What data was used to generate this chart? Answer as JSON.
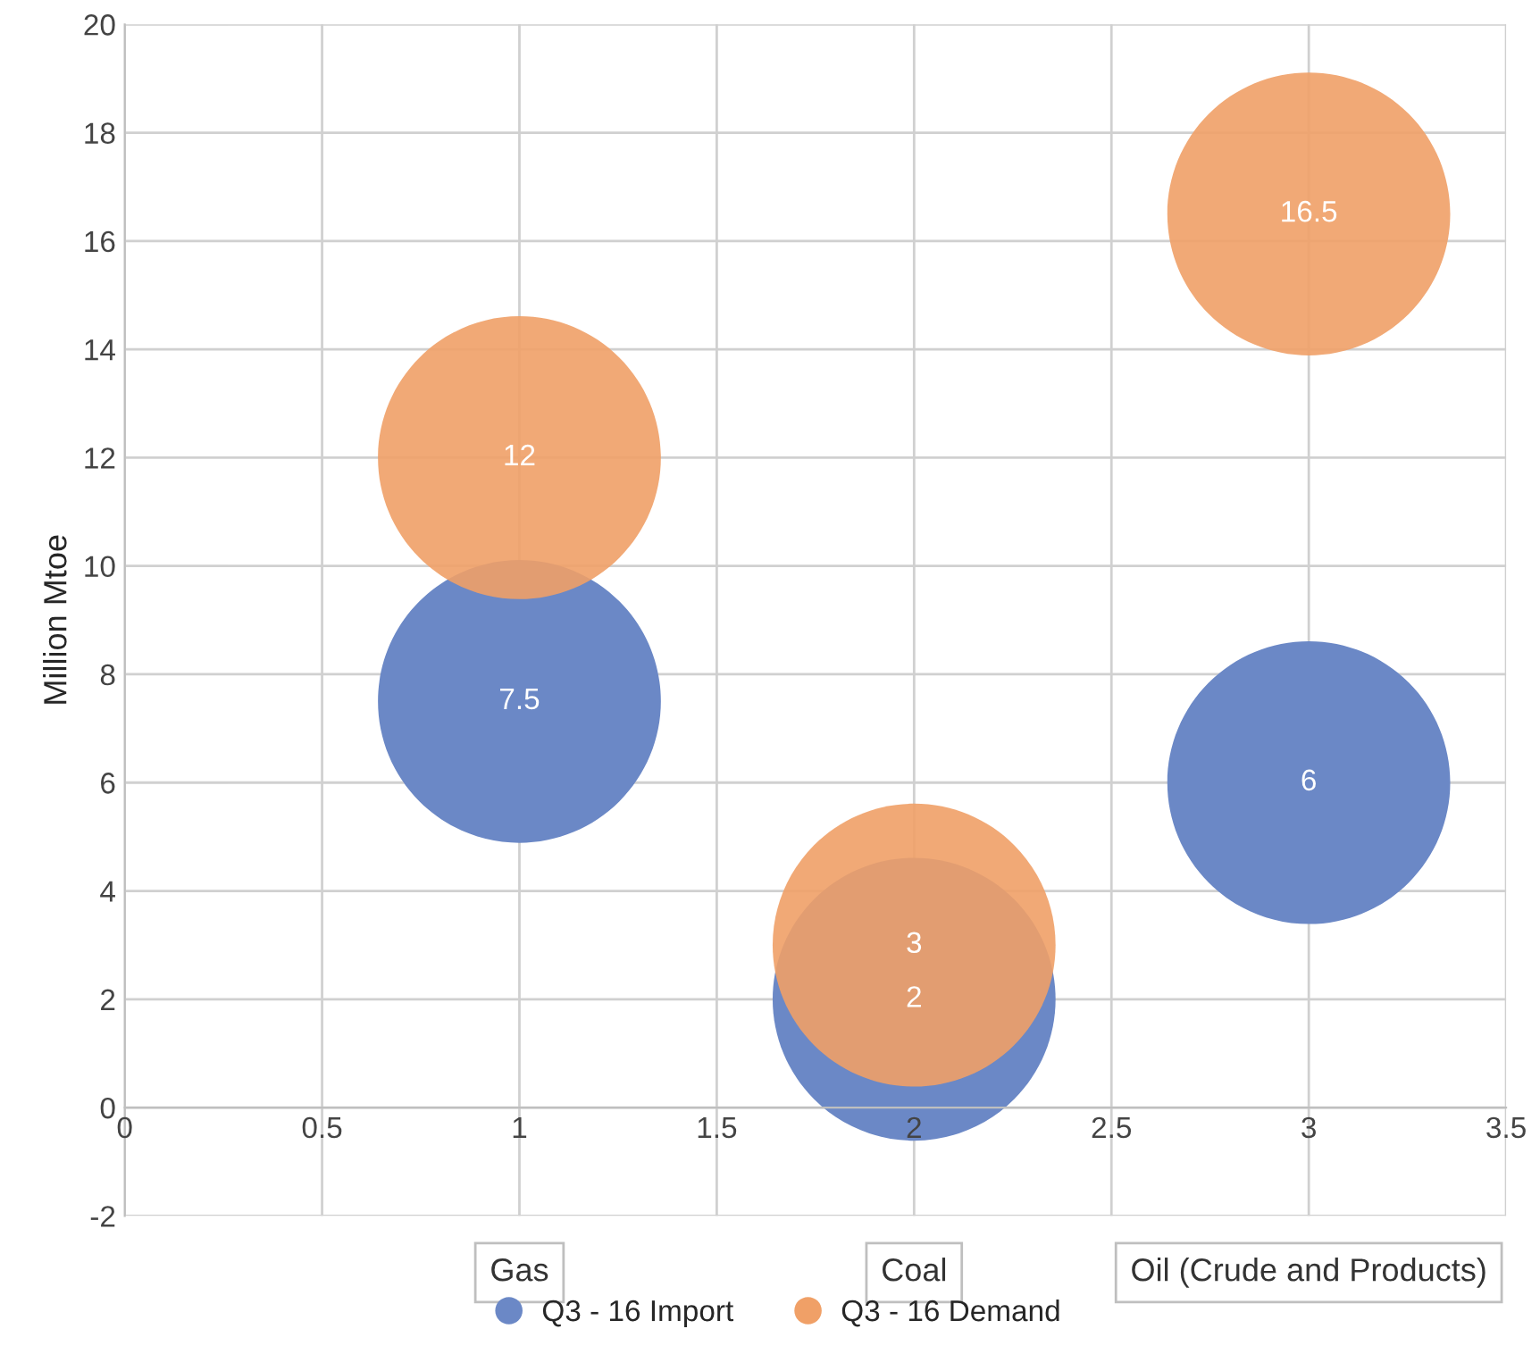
{
  "chart_data": {
    "type": "bubble",
    "ylabel": "Million Mtoe",
    "xlim": [
      0,
      3.5
    ],
    "xticks": [
      0,
      0.5,
      1,
      1.5,
      2,
      2.5,
      3,
      3.5
    ],
    "ylim": [
      -2,
      20
    ],
    "yticks": [
      -2,
      0,
      2,
      4,
      6,
      8,
      10,
      12,
      14,
      16,
      18,
      20
    ],
    "grid": true,
    "legend": "bottom",
    "data_labels": true,
    "series": [
      {
        "name": "Q3 - 16 Import",
        "color": "#6b88c6",
        "x": [
          1,
          2,
          3
        ],
        "values": [
          7.5,
          2,
          6
        ],
        "sizes": [
          1,
          1,
          1
        ]
      },
      {
        "name": "Q3 - 16 Demand",
        "color": "#f0a067",
        "x": [
          1,
          2,
          3
        ],
        "values": [
          12,
          3,
          16.5
        ],
        "sizes": [
          1,
          1,
          1
        ]
      }
    ],
    "annotations": [
      "Gas",
      "Coal",
      "Oil (Crude and Products)"
    ]
  }
}
